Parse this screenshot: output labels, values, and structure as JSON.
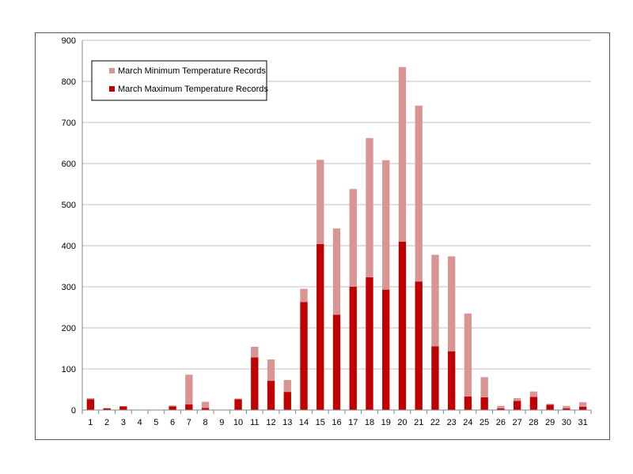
{
  "chart_data": {
    "type": "bar",
    "stacked": true,
    "categories": [
      "1",
      "2",
      "3",
      "4",
      "5",
      "6",
      "7",
      "8",
      "9",
      "10",
      "11",
      "12",
      "13",
      "14",
      "15",
      "16",
      "17",
      "18",
      "19",
      "20",
      "21",
      "22",
      "23",
      "24",
      "25",
      "26",
      "27",
      "28",
      "29",
      "30",
      "31"
    ],
    "series": [
      {
        "name": "March Maximum Temperature Records",
        "color": "#c00000",
        "values": [
          26,
          4,
          9,
          0,
          0,
          9,
          14,
          5,
          0,
          26,
          128,
          71,
          44,
          263,
          404,
          232,
          300,
          323,
          293,
          410,
          313,
          155,
          143,
          33,
          31,
          4,
          22,
          32,
          13,
          4,
          8
        ]
      },
      {
        "name": "March Minimum Temperature Records",
        "color": "#d99594",
        "values": [
          3,
          1,
          0,
          0,
          0,
          2,
          72,
          15,
          0,
          2,
          26,
          52,
          29,
          32,
          205,
          210,
          238,
          339,
          315,
          425,
          428,
          223,
          231,
          202,
          49,
          6,
          7,
          13,
          2,
          6,
          11
        ]
      }
    ],
    "ylim": [
      0,
      900
    ],
    "yticks": [
      0,
      100,
      200,
      300,
      400,
      500,
      600,
      700,
      800,
      900
    ],
    "grid": true,
    "legend_position": "top-left",
    "title": "",
    "xlabel": "",
    "ylabel": ""
  }
}
